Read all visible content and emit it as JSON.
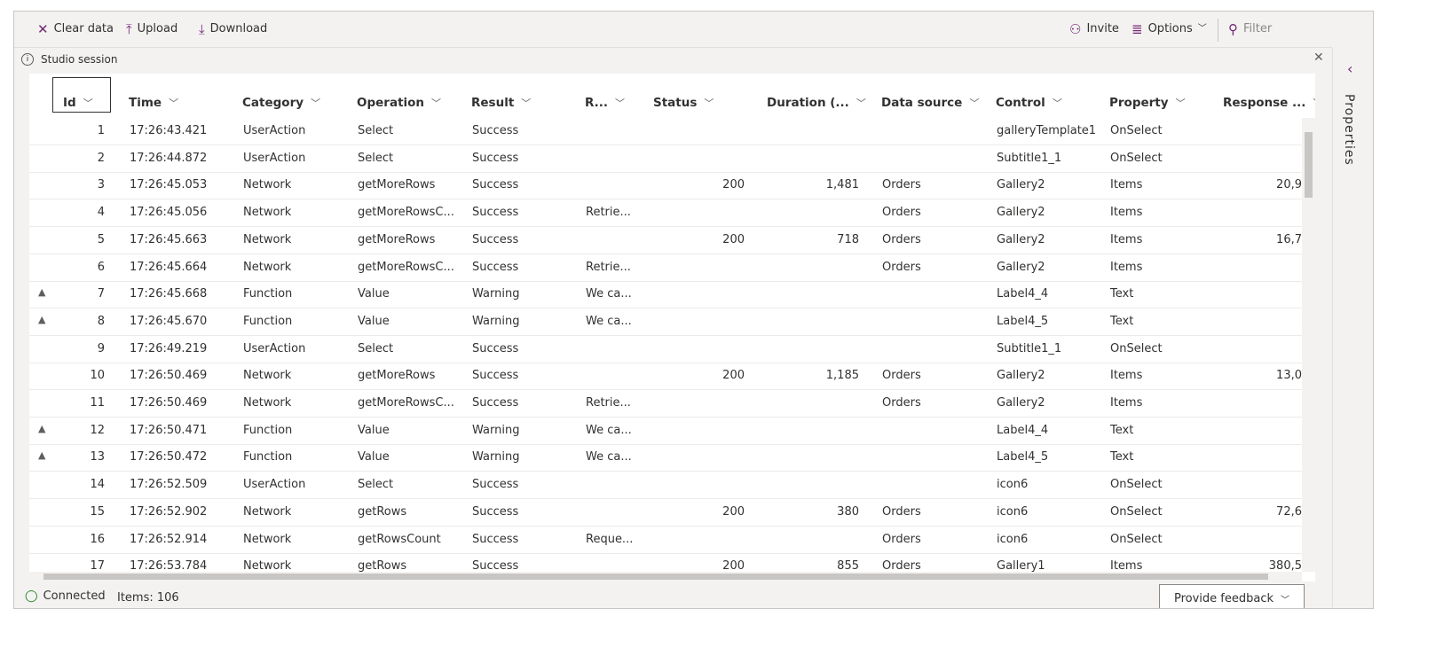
{
  "toolbar": {
    "clear": "Clear data",
    "upload": "Upload",
    "download": "Download",
    "invite": "Invite",
    "options": "Options",
    "filter": "Filter"
  },
  "session": {
    "label": "Studio session"
  },
  "table": {
    "columns": [
      "Id",
      "Time",
      "Category",
      "Operation",
      "Result",
      "R...",
      "Status",
      "Duration (...",
      "Data source",
      "Control",
      "Property",
      "Response ..."
    ],
    "rows": [
      [
        1,
        "17:26:43.421",
        "UserAction",
        "Select",
        "Success",
        null,
        null,
        null,
        null,
        "galleryTemplate1",
        "OnSelect",
        null
      ],
      [
        2,
        "17:26:44.872",
        "UserAction",
        "Select",
        "Success",
        null,
        null,
        null,
        null,
        "Subtitle1_1",
        "OnSelect",
        null
      ],
      [
        3,
        "17:26:45.053",
        "Network",
        "getMoreRows",
        "Success",
        null,
        200,
        "1,481",
        "Orders",
        "Gallery2",
        "Items",
        "20,9"
      ],
      [
        4,
        "17:26:45.056",
        "Network",
        "getMoreRowsC...",
        "Success",
        "Retrie...",
        null,
        null,
        "Orders",
        "Gallery2",
        "Items",
        null
      ],
      [
        5,
        "17:26:45.663",
        "Network",
        "getMoreRows",
        "Success",
        null,
        200,
        718,
        "Orders",
        "Gallery2",
        "Items",
        "16,7"
      ],
      [
        6,
        "17:26:45.664",
        "Network",
        "getMoreRowsC...",
        "Success",
        "Retrie...",
        null,
        null,
        "Orders",
        "Gallery2",
        "Items",
        null
      ],
      [
        7,
        "17:26:45.668",
        "Function",
        "Value",
        "Warning",
        "We ca...",
        null,
        null,
        null,
        "Label4_4",
        "Text",
        null
      ],
      [
        8,
        "17:26:45.670",
        "Function",
        "Value",
        "Warning",
        "We ca...",
        null,
        null,
        null,
        "Label4_5",
        "Text",
        null
      ],
      [
        9,
        "17:26:49.219",
        "UserAction",
        "Select",
        "Success",
        null,
        null,
        null,
        null,
        "Subtitle1_1",
        "OnSelect",
        null
      ],
      [
        10,
        "17:26:50.469",
        "Network",
        "getMoreRows",
        "Success",
        null,
        200,
        "1,185",
        "Orders",
        "Gallery2",
        "Items",
        "13,0"
      ],
      [
        11,
        "17:26:50.469",
        "Network",
        "getMoreRowsC...",
        "Success",
        "Retrie...",
        null,
        null,
        "Orders",
        "Gallery2",
        "Items",
        null
      ],
      [
        12,
        "17:26:50.471",
        "Function",
        "Value",
        "Warning",
        "We ca...",
        null,
        null,
        null,
        "Label4_4",
        "Text",
        null
      ],
      [
        13,
        "17:26:50.472",
        "Function",
        "Value",
        "Warning",
        "We ca...",
        null,
        null,
        null,
        "Label4_5",
        "Text",
        null
      ],
      [
        14,
        "17:26:52.509",
        "UserAction",
        "Select",
        "Success",
        null,
        null,
        null,
        null,
        "icon6",
        "OnSelect",
        null
      ],
      [
        15,
        "17:26:52.902",
        "Network",
        "getRows",
        "Success",
        null,
        200,
        380,
        "Orders",
        "icon6",
        "OnSelect",
        "72,6"
      ],
      [
        16,
        "17:26:52.914",
        "Network",
        "getRowsCount",
        "Success",
        "Reque...",
        null,
        null,
        "Orders",
        "icon6",
        "OnSelect",
        null
      ],
      [
        17,
        "17:26:53.784",
        "Network",
        "getRows",
        "Success",
        null,
        200,
        855,
        "Orders",
        "Gallery1",
        "Items",
        "380,5"
      ]
    ]
  },
  "side_panel": {
    "title": "Properties"
  },
  "status_bar": {
    "connection": "Connected",
    "items": "Items: 106",
    "feedback": "Provide feedback"
  }
}
